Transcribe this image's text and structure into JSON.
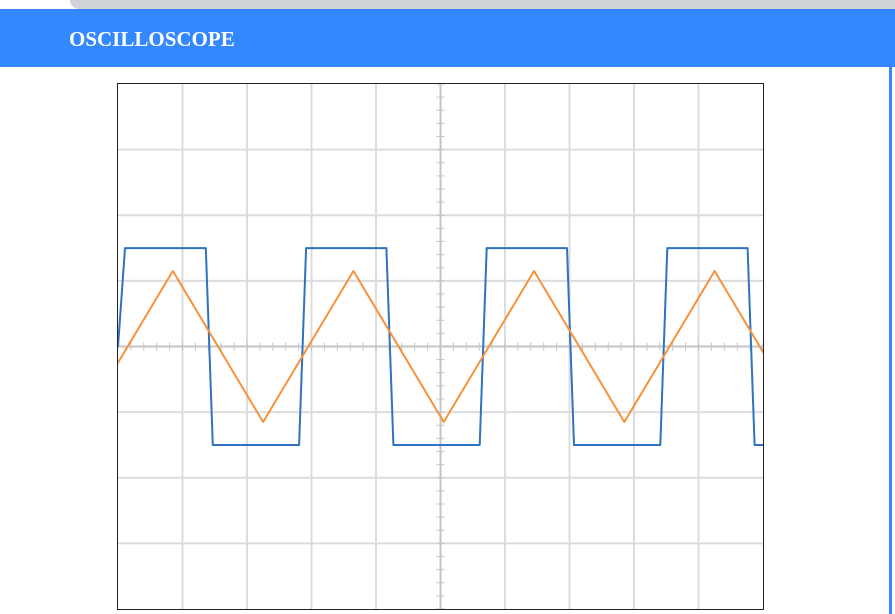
{
  "app": {
    "title": "OSCILLOSCOPE"
  },
  "colors": {
    "header_bg": "#3388ff",
    "header_text": "#ffffff",
    "grid": "#dcdcdc",
    "axis": "#c4c4c4",
    "channel_square": "#2f72c0",
    "channel_triangle": "#f7923c"
  },
  "scope": {
    "divisions_x": 10,
    "divisions_y": 8,
    "minor_ticks_per_division": 5,
    "channels": [
      {
        "waveform": "square",
        "color": "#2f72c0",
        "amplitude_div": 1.5,
        "period_div": 2.8,
        "phase_div": 0.0
      },
      {
        "waveform": "triangle",
        "color": "#f7923c",
        "amplitude_div": 1.15,
        "period_div": 2.8,
        "peak_at_div": 2.8
      }
    ]
  }
}
